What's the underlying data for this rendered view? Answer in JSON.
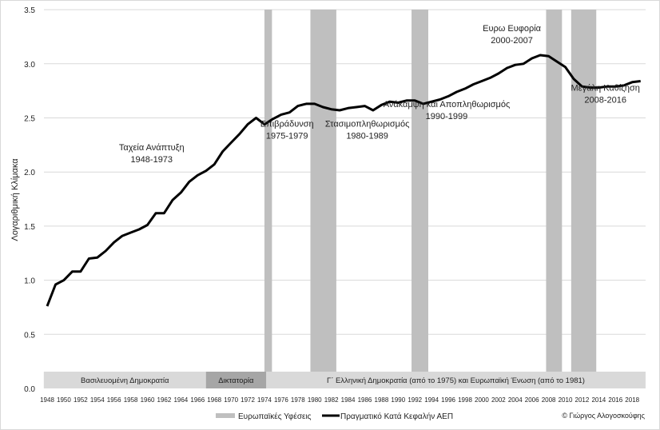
{
  "chart_data": {
    "type": "line",
    "title": "",
    "ylabel": "Λογαριθμική Κλίμακα",
    "xlabel": "",
    "ylim": [
      0,
      3.5
    ],
    "yticks": [
      "0.0",
      "0.5",
      "1.0",
      "1.5",
      "2.0",
      "2.5",
      "3.0",
      "3.5"
    ],
    "xlim": [
      1948,
      2019
    ],
    "xticks": [
      "1948",
      "1950",
      "1952",
      "1954",
      "1956",
      "1958",
      "1960",
      "1962",
      "1964",
      "1966",
      "1968",
      "1970",
      "1972",
      "1974",
      "1976",
      "1978",
      "1980",
      "1982",
      "1984",
      "1986",
      "1988",
      "1990",
      "1992",
      "1994",
      "1996",
      "1998",
      "2000",
      "2002",
      "2004",
      "2006",
      "2008",
      "2010",
      "2012",
      "2014",
      "2016",
      "2018"
    ],
    "grid": true,
    "series": [
      {
        "name": "Πραγματικό Κατά Κεφαλήν ΑΕΠ",
        "color": "#000000",
        "x": [
          1948,
          1949,
          1950,
          1951,
          1952,
          1953,
          1954,
          1955,
          1956,
          1957,
          1958,
          1959,
          1960,
          1961,
          1962,
          1963,
          1964,
          1965,
          1966,
          1967,
          1968,
          1969,
          1970,
          1971,
          1972,
          1973,
          1974,
          1975,
          1976,
          1977,
          1978,
          1979,
          1980,
          1981,
          1982,
          1983,
          1984,
          1985,
          1986,
          1987,
          1988,
          1989,
          1990,
          1991,
          1992,
          1993,
          1994,
          1995,
          1996,
          1997,
          1998,
          1999,
          2000,
          2001,
          2002,
          2003,
          2004,
          2005,
          2006,
          2007,
          2008,
          2009,
          2010,
          2011,
          2012,
          2013,
          2014,
          2015,
          2016,
          2017,
          2018,
          2019
        ],
        "y": [
          0.76,
          0.96,
          1.0,
          1.08,
          1.08,
          1.2,
          1.21,
          1.27,
          1.35,
          1.41,
          1.44,
          1.47,
          1.51,
          1.62,
          1.62,
          1.74,
          1.81,
          1.91,
          1.97,
          2.01,
          2.07,
          2.19,
          2.27,
          2.35,
          2.44,
          2.5,
          2.44,
          2.49,
          2.53,
          2.55,
          2.61,
          2.63,
          2.63,
          2.6,
          2.58,
          2.57,
          2.59,
          2.6,
          2.61,
          2.57,
          2.62,
          2.65,
          2.64,
          2.66,
          2.66,
          2.63,
          2.65,
          2.67,
          2.7,
          2.74,
          2.77,
          2.81,
          2.84,
          2.87,
          2.91,
          2.96,
          2.99,
          3.0,
          3.05,
          3.08,
          3.07,
          3.02,
          2.97,
          2.86,
          2.79,
          2.78,
          2.78,
          2.79,
          2.79,
          2.8,
          2.83,
          2.84
        ]
      }
    ],
    "recessions": {
      "name": "Ευρωπαϊκές Υφέσεις",
      "color": "#bfbfbf",
      "ranges": [
        [
          1974.0,
          1974.9
        ],
        [
          1979.5,
          1982.6
        ],
        [
          1991.6,
          1993.6
        ],
        [
          2007.7,
          2009.6
        ],
        [
          2010.7,
          2013.7
        ]
      ]
    },
    "periods": [
      {
        "label": "Βασιλευομένη Δημοκρατία",
        "from": 1947.6,
        "to": 1967.0,
        "color": "#d9d9d9"
      },
      {
        "label": "Δικτατορία",
        "from": 1967.0,
        "to": 1974.2,
        "color": "#a6a6a6"
      },
      {
        "label": "Γ΄ Ελληνική Δημοκρατία (από το 1975) και Ευρωπαϊκή Ένωση (από το 1981)",
        "from": 1974.2,
        "to": 2019.6,
        "color": "#d9d9d9"
      }
    ],
    "annotations": [
      {
        "lines": [
          "Ταχεία Ανάπτυξη",
          "1948-1973"
        ],
        "x": 1960.5,
        "y": 2.2
      },
      {
        "lines": [
          "Επιβράδυνση",
          "1975-1979"
        ],
        "x": 1976.7,
        "y": 2.42
      },
      {
        "lines": [
          "Στασιμοπληθωρισμός",
          "1980-1989"
        ],
        "x": 1986.3,
        "y": 2.42
      },
      {
        "lines": [
          "Ανάκαμψη και Αποπληθωρισμός",
          "1990-1999"
        ],
        "x": 1995.8,
        "y": 2.6
      },
      {
        "lines": [
          "Ευρω Ευφορία",
          "2000-2007"
        ],
        "x": 2003.6,
        "y": 3.3
      },
      {
        "lines": [
          "Μεγάλη Καθίζηση",
          "2008-2016"
        ],
        "x": 2014.8,
        "y": 2.75
      }
    ],
    "legend": "bottom",
    "credit": "© Γιώργος Αλογοσκούφης"
  }
}
